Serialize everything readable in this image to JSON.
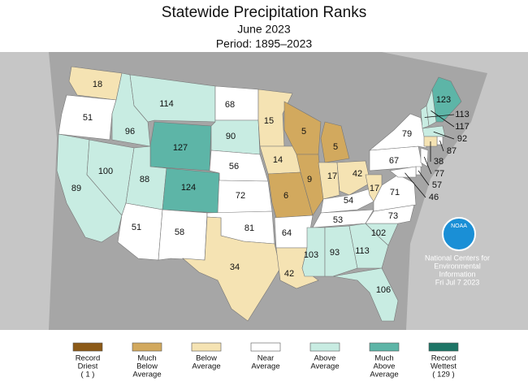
{
  "header": {
    "title": "Statewide Precipitation Ranks",
    "subtitle": "June 2023",
    "period": "Period: 1895–2023"
  },
  "states": [
    {
      "rank": 18,
      "color": "#f5e3b3"
    },
    {
      "rank": 51,
      "color": "#ffffff"
    },
    {
      "rank": 89,
      "color": "#c8ece2"
    },
    {
      "rank": 100,
      "color": "#c8ece2"
    },
    {
      "rank": 96,
      "color": "#c8ece2"
    },
    {
      "rank": 114,
      "color": "#c8ece2"
    },
    {
      "rank": 127,
      "color": "#5db5a7"
    },
    {
      "rank": 88,
      "color": "#c8ece2"
    },
    {
      "rank": 124,
      "color": "#5db5a7"
    },
    {
      "rank": 51,
      "color": "#ffffff"
    },
    {
      "rank": 58,
      "color": "#ffffff"
    },
    {
      "rank": 68,
      "color": "#ffffff"
    },
    {
      "rank": 90,
      "color": "#c8ece2"
    },
    {
      "rank": 56,
      "color": "#ffffff"
    },
    {
      "rank": 72,
      "color": "#ffffff"
    },
    {
      "rank": 81,
      "color": "#ffffff"
    },
    {
      "rank": 34,
      "color": "#f5e3b3"
    },
    {
      "rank": 15,
      "color": "#f5e3b3"
    },
    {
      "rank": 14,
      "color": "#f5e3b3"
    },
    {
      "rank": 6,
      "color": "#d2a95e"
    },
    {
      "rank": 64,
      "color": "#ffffff"
    },
    {
      "rank": 42,
      "color": "#f5e3b3"
    },
    {
      "rank": 5,
      "color": "#d2a95e"
    },
    {
      "rank": 9,
      "color": "#d2a95e"
    },
    {
      "rank": 5,
      "color": "#d2a95e"
    },
    {
      "rank": 17,
      "color": "#f5e3b3"
    },
    {
      "rank": 42,
      "color": "#f5e3b3"
    },
    {
      "rank": 54,
      "color": "#ffffff"
    },
    {
      "rank": 53,
      "color": "#ffffff"
    },
    {
      "rank": 103,
      "color": "#c8ece2"
    },
    {
      "rank": 93,
      "color": "#c8ece2"
    },
    {
      "rank": 113,
      "color": "#c8ece2"
    },
    {
      "rank": 106,
      "color": "#c8ece2"
    },
    {
      "rank": 102,
      "color": "#c8ece2"
    },
    {
      "rank": 73,
      "color": "#ffffff"
    },
    {
      "rank": 71,
      "color": "#ffffff"
    },
    {
      "rank": 17,
      "color": "#f5e3b3"
    },
    {
      "rank": 67,
      "color": "#ffffff"
    },
    {
      "rank": 79,
      "color": "#ffffff"
    },
    {
      "rank": 123,
      "color": "#5db5a7"
    },
    {
      "rank": 113,
      "color": "#c8ece2"
    },
    {
      "rank": 117,
      "color": "#c8ece2"
    },
    {
      "rank": 92,
      "color": "#c8ece2"
    },
    {
      "rank": 87,
      "color": "#ffffff"
    },
    {
      "rank": 38,
      "color": "#f5e3b3"
    },
    {
      "rank": 77,
      "color": "#ffffff"
    },
    {
      "rank": 57,
      "color": "#ffffff"
    },
    {
      "rank": 46,
      "color": "#ffffff"
    }
  ],
  "legend": [
    {
      "lines": [
        "Record",
        "Driest",
        "( 1 )"
      ],
      "color": "#8c5a17"
    },
    {
      "lines": [
        "Much",
        "Below",
        "Average"
      ],
      "color": "#d2a95e"
    },
    {
      "lines": [
        "Below",
        "Average"
      ],
      "color": "#f5e3b3"
    },
    {
      "lines": [
        "Near",
        "Average"
      ],
      "color": "#ffffff"
    },
    {
      "lines": [
        "Above",
        "Average"
      ],
      "color": "#c8ece2"
    },
    {
      "lines": [
        "Much",
        "Above",
        "Average"
      ],
      "color": "#5db5a7"
    },
    {
      "lines": [
        "Record",
        "Wettest",
        "( 129 )"
      ],
      "color": "#1d7566"
    }
  ],
  "logo": "NOAA",
  "credit": [
    "National Centers for",
    "Environmental",
    "Information",
    "Fri Jul  7 2023"
  ]
}
